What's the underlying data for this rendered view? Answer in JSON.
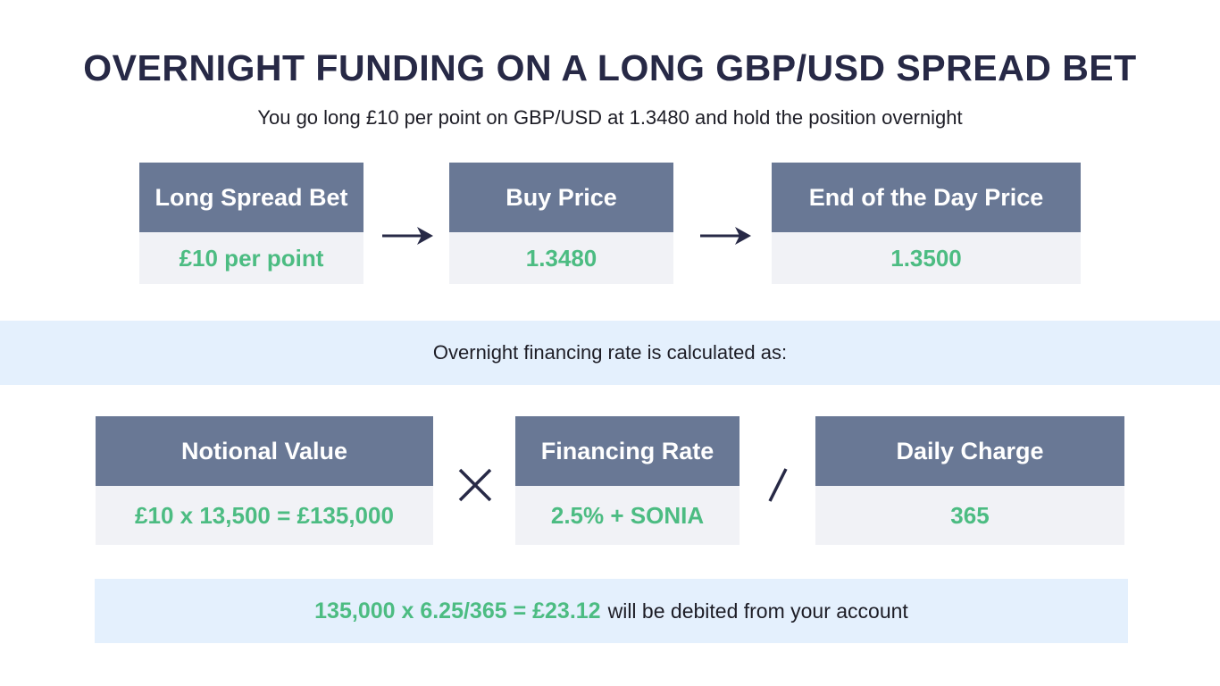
{
  "title": "OVERNIGHT FUNDING ON A LONG GBP/USD SPREAD BET",
  "subtitle": "You go long  £10 per point on GBP/USD at 1.3480 and hold the position overnight",
  "row1": [
    {
      "header": "Long Spread Bet",
      "value": "£10 per point"
    },
    {
      "header": "Buy Price",
      "value": "1.3480"
    },
    {
      "header": "End of the Day Price",
      "value": "1.3500"
    }
  ],
  "band_text": "Overnight financing rate is calculated as:",
  "row2": [
    {
      "header": "Notional Value",
      "value": "£10 x 13,500 =  £135,000"
    },
    {
      "header": "Financing Rate",
      "value": "2.5% + SONIA"
    },
    {
      "header": "Daily Charge",
      "value": "365"
    }
  ],
  "operators": {
    "multiply": "X",
    "divide": "/"
  },
  "result": {
    "formula": "135,000 x 6.25/365 = £23.12",
    "text": "will be debited from your account"
  },
  "colors": {
    "header_bg": "#697895",
    "value_green": "#4cbc82",
    "title": "#272946",
    "band_bg": "#e4f0fd",
    "card_body_bg": "#f1f2f6"
  }
}
